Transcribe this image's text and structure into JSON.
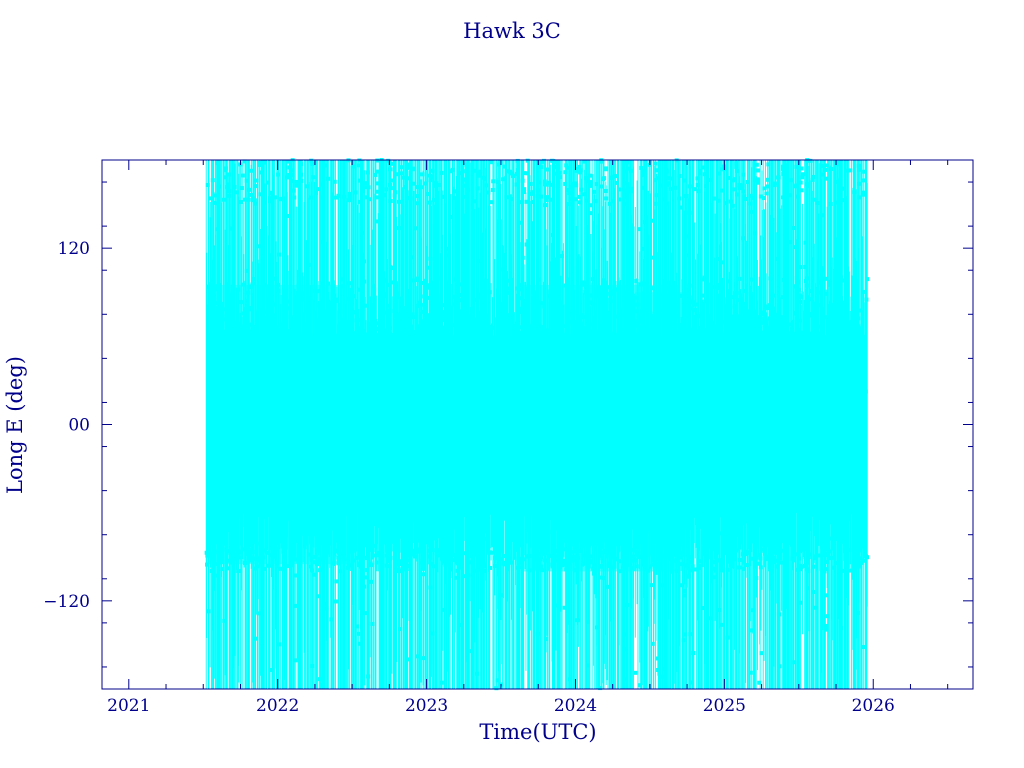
{
  "chart_data": {
    "type": "line",
    "title": "Hawk 3C",
    "xlabel": "Time(UTC)",
    "ylabel": "Long E (deg)",
    "x_tick_labels": [
      "2021",
      "2022",
      "2023",
      "2024",
      "2025",
      "2026"
    ],
    "y_tick_labels": [
      "−120",
      "00",
      "120"
    ],
    "y_ticks": [
      -120,
      0,
      120
    ],
    "xlim": [
      2020.82,
      2026.67
    ],
    "ylim": [
      -180,
      180
    ],
    "grid": false,
    "legend": "none",
    "series_color": "#00ffff",
    "axis_color": "#00008b",
    "series": [
      {
        "x_range": [
          2021.52,
          2025.96
        ],
        "values_pattern": "wrapping longitude sweeps from -180 to 180 deg, dense bands near 70 to 100 deg and -90 to -100 deg",
        "clusters": [
          {
            "name_hidden": true,
            "range_deg": [
              60,
              100
            ]
          },
          {
            "name_hidden": true,
            "range_deg": [
              -100,
              -85
            ]
          },
          {
            "name_hidden": true,
            "range_deg": [
              150,
              180
            ]
          }
        ]
      }
    ]
  }
}
